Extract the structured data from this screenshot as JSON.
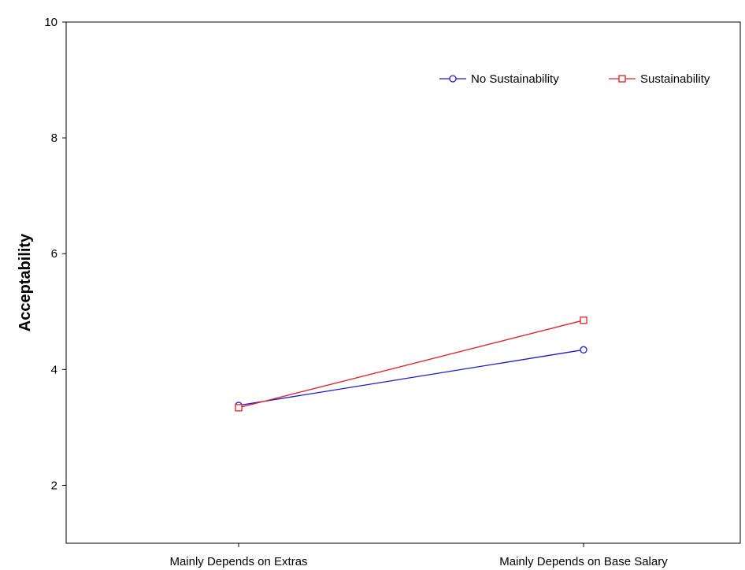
{
  "chart_data": {
    "type": "line",
    "categories": [
      "Mainly Depends on Extras",
      "Mainly Depends on Base Salary"
    ],
    "series": [
      {
        "name": "No Sustainability",
        "values": [
          3.38,
          4.34
        ],
        "color": "#1a1acc",
        "marker": "circle"
      },
      {
        "name": "Sustainability",
        "values": [
          3.34,
          4.85
        ],
        "color": "#e0202a",
        "marker": "square"
      }
    ],
    "title": "",
    "xlabel": "",
    "ylabel": "Acceptability",
    "ylim": [
      1,
      10
    ],
    "yticks": [
      2,
      4,
      6,
      8,
      10
    ],
    "grid": false,
    "legend_position": "top-right"
  }
}
